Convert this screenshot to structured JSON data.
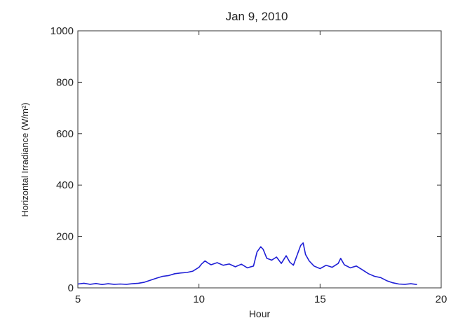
{
  "chart_data": {
    "type": "line",
    "title": "Jan 9, 2010",
    "xlabel": "Hour",
    "ylabel": "Horizontal Irradiance (W/m²)",
    "xlim": [
      5,
      20
    ],
    "ylim": [
      0,
      1000
    ],
    "xticks": [
      5,
      10,
      15,
      20
    ],
    "yticks": [
      0,
      200,
      400,
      600,
      800,
      1000
    ],
    "grid": false,
    "line_color": "#1f1fd6",
    "series": [
      {
        "x": [
          5.0,
          5.25,
          5.5,
          5.75,
          6.0,
          6.25,
          6.5,
          6.75,
          7.0,
          7.25,
          7.5,
          7.75,
          8.0,
          8.25,
          8.5,
          8.75,
          9.0,
          9.25,
          9.5,
          9.75,
          10.0,
          10.1,
          10.25,
          10.4,
          10.5,
          10.75,
          11.0,
          11.25,
          11.5,
          11.75,
          12.0,
          12.25,
          12.4,
          12.55,
          12.65,
          12.8,
          13.0,
          13.2,
          13.4,
          13.6,
          13.75,
          13.9,
          14.1,
          14.2,
          14.3,
          14.4,
          14.55,
          14.75,
          15.0,
          15.25,
          15.5,
          15.75,
          15.85,
          16.0,
          16.25,
          16.5,
          16.75,
          17.0,
          17.25,
          17.5,
          17.75,
          18.0,
          18.25,
          18.5,
          18.75,
          19.0
        ],
        "y": [
          15,
          18,
          14,
          17,
          13,
          16,
          14,
          15,
          14,
          16,
          18,
          22,
          30,
          38,
          45,
          48,
          55,
          58,
          60,
          65,
          80,
          92,
          105,
          95,
          90,
          98,
          88,
          93,
          82,
          92,
          78,
          85,
          140,
          160,
          150,
          115,
          108,
          120,
          95,
          125,
          100,
          88,
          140,
          165,
          175,
          130,
          105,
          85,
          75,
          88,
          80,
          95,
          115,
          90,
          78,
          85,
          70,
          55,
          45,
          40,
          28,
          20,
          15,
          14,
          16,
          13
        ]
      }
    ]
  }
}
